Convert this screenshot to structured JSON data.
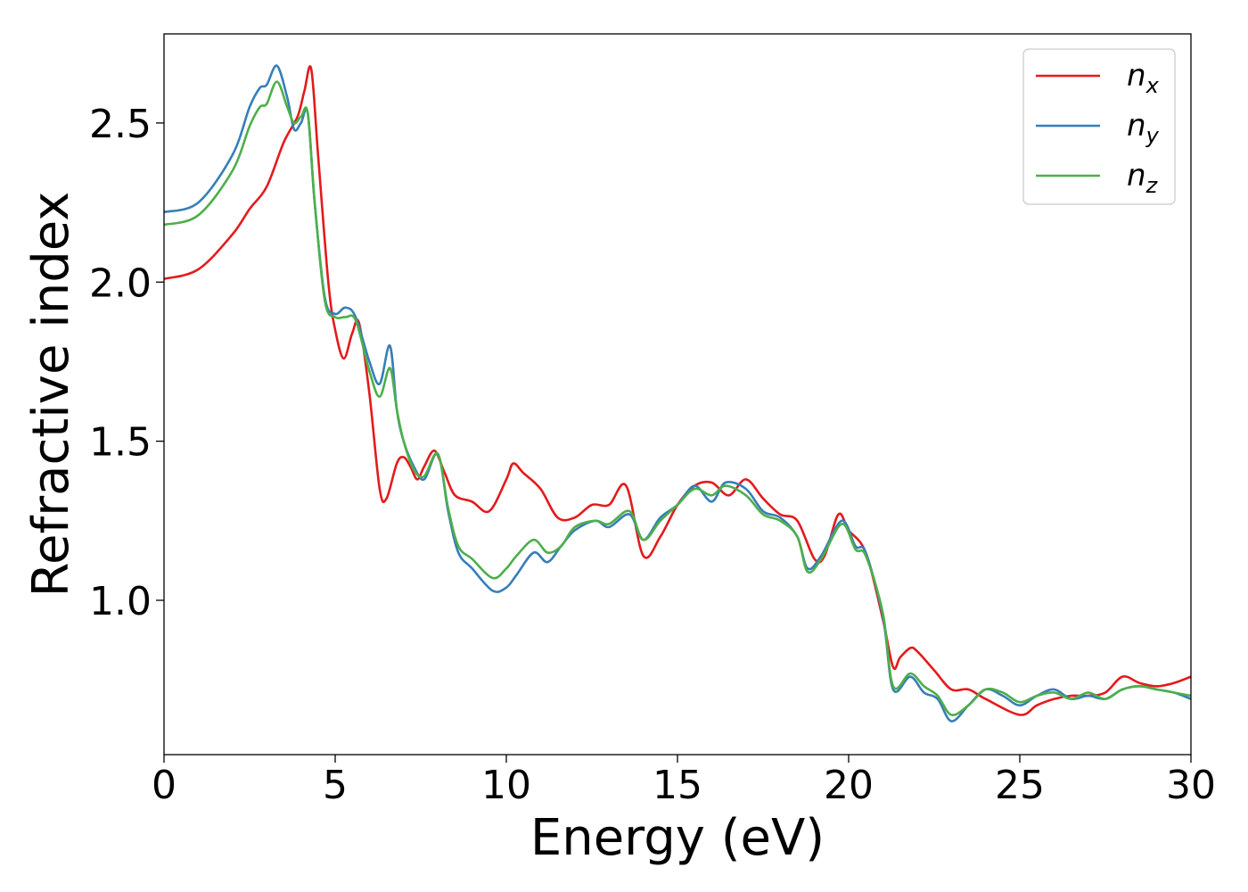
{
  "chart_data": {
    "type": "line",
    "xlabel": "Energy (eV)",
    "ylabel": "Refractive index",
    "xlim": [
      0,
      30
    ],
    "ylim": [
      0.515,
      2.78
    ],
    "xticks": [
      0,
      5,
      10,
      15,
      20,
      25,
      30
    ],
    "xtick_labels": [
      "0",
      "5",
      "10",
      "15",
      "20",
      "25",
      "30"
    ],
    "yticks": [
      1.0,
      1.5,
      2.0,
      2.5
    ],
    "ytick_labels": [
      "1.0",
      "1.5",
      "2.0",
      "2.5"
    ],
    "grid": false,
    "legend_position": "top-right",
    "series": [
      {
        "name": "nx",
        "label_main": "n",
        "label_sub": "x",
        "color": "#e41a1c",
        "x": [
          0,
          1,
          2,
          2.5,
          3,
          3.5,
          3.9,
          4.1,
          4.3,
          4.5,
          4.8,
          5,
          5.25,
          5.5,
          5.7,
          6,
          6.3,
          6.5,
          6.8,
          7,
          7.2,
          7.4,
          7.6,
          7.9,
          8.2,
          8.5,
          9,
          9.5,
          10,
          10.2,
          10.5,
          11,
          11.5,
          12,
          12.5,
          13,
          13.5,
          14,
          14.5,
          15,
          15.5,
          16,
          16.5,
          17,
          17.5,
          18,
          18.5,
          19,
          19.3,
          19.7,
          20,
          20.5,
          21,
          21.3,
          21.5,
          21.8,
          22,
          22.5,
          23,
          23.5,
          24,
          25,
          25.5,
          26,
          26.5,
          27,
          27.5,
          28,
          28.5,
          29,
          29.5,
          30
        ],
        "y": [
          2.01,
          2.04,
          2.15,
          2.23,
          2.3,
          2.44,
          2.52,
          2.6,
          2.67,
          2.4,
          2.0,
          1.85,
          1.76,
          1.84,
          1.87,
          1.65,
          1.35,
          1.32,
          1.43,
          1.45,
          1.42,
          1.38,
          1.42,
          1.47,
          1.4,
          1.33,
          1.31,
          1.28,
          1.38,
          1.43,
          1.4,
          1.35,
          1.26,
          1.26,
          1.3,
          1.3,
          1.36,
          1.14,
          1.2,
          1.3,
          1.36,
          1.37,
          1.33,
          1.38,
          1.32,
          1.27,
          1.25,
          1.13,
          1.14,
          1.27,
          1.22,
          1.15,
          0.94,
          0.79,
          0.82,
          0.85,
          0.84,
          0.78,
          0.72,
          0.72,
          0.69,
          0.64,
          0.67,
          0.69,
          0.7,
          0.7,
          0.71,
          0.76,
          0.74,
          0.73,
          0.74,
          0.76
        ]
      },
      {
        "name": "ny",
        "label_main": "n",
        "label_sub": "y",
        "color": "#377eb8",
        "x": [
          0,
          1,
          2,
          2.5,
          2.8,
          3,
          3.3,
          3.6,
          3.8,
          4,
          4.2,
          4.4,
          4.7,
          5,
          5.3,
          5.6,
          6,
          6.3,
          6.6,
          6.8,
          7,
          7.3,
          7.6,
          8,
          8.3,
          8.6,
          9,
          9.6,
          10,
          10.3,
          10.8,
          11.2,
          11.6,
          12,
          12.6,
          13,
          13.6,
          14,
          14.5,
          15,
          15.5,
          16,
          16.4,
          17,
          17.5,
          18,
          18.5,
          18.8,
          19.2,
          19.8,
          20.2,
          20.5,
          21,
          21.3,
          21.8,
          22.2,
          22.6,
          23,
          23.5,
          24,
          24.5,
          25,
          25.5,
          26,
          26.5,
          27,
          27.5,
          28,
          28.5,
          29,
          29.5,
          30
        ],
        "y": [
          2.22,
          2.25,
          2.4,
          2.55,
          2.61,
          2.62,
          2.68,
          2.58,
          2.48,
          2.5,
          2.53,
          2.25,
          1.95,
          1.9,
          1.92,
          1.89,
          1.75,
          1.68,
          1.8,
          1.6,
          1.5,
          1.42,
          1.38,
          1.46,
          1.28,
          1.15,
          1.1,
          1.03,
          1.04,
          1.08,
          1.15,
          1.12,
          1.17,
          1.22,
          1.25,
          1.23,
          1.27,
          1.19,
          1.26,
          1.3,
          1.36,
          1.31,
          1.37,
          1.35,
          1.28,
          1.26,
          1.2,
          1.1,
          1.14,
          1.25,
          1.17,
          1.15,
          0.95,
          0.72,
          0.76,
          0.71,
          0.69,
          0.62,
          0.67,
          0.72,
          0.7,
          0.67,
          0.7,
          0.72,
          0.69,
          0.7,
          0.69,
          0.72,
          0.73,
          0.72,
          0.71,
          0.69
        ]
      },
      {
        "name": "nz",
        "label_main": "n",
        "label_sub": "z",
        "color": "#4daf4a",
        "x": [
          0,
          1,
          2,
          2.5,
          2.8,
          3,
          3.3,
          3.6,
          3.8,
          4,
          4.2,
          4.4,
          4.7,
          5,
          5.3,
          5.6,
          6,
          6.3,
          6.6,
          6.8,
          7,
          7.3,
          7.6,
          8,
          8.3,
          8.6,
          9,
          9.6,
          10,
          10.3,
          10.8,
          11.2,
          11.6,
          12,
          12.6,
          13,
          13.6,
          14,
          14.5,
          15,
          15.5,
          16,
          16.4,
          17,
          17.5,
          18,
          18.5,
          18.8,
          19.2,
          19.8,
          20.2,
          20.5,
          21,
          21.3,
          21.8,
          22.2,
          22.6,
          23,
          23.5,
          24,
          24.5,
          25,
          25.5,
          26,
          26.5,
          27,
          27.5,
          28,
          28.5,
          29,
          29.5,
          30
        ],
        "y": [
          2.18,
          2.21,
          2.35,
          2.49,
          2.55,
          2.56,
          2.63,
          2.55,
          2.5,
          2.52,
          2.53,
          2.25,
          1.94,
          1.89,
          1.89,
          1.88,
          1.72,
          1.64,
          1.73,
          1.6,
          1.5,
          1.41,
          1.39,
          1.46,
          1.29,
          1.17,
          1.13,
          1.07,
          1.1,
          1.14,
          1.19,
          1.15,
          1.17,
          1.23,
          1.25,
          1.24,
          1.28,
          1.19,
          1.25,
          1.3,
          1.35,
          1.33,
          1.36,
          1.33,
          1.27,
          1.25,
          1.2,
          1.09,
          1.13,
          1.24,
          1.16,
          1.14,
          0.96,
          0.73,
          0.77,
          0.73,
          0.7,
          0.64,
          0.67,
          0.72,
          0.71,
          0.68,
          0.7,
          0.71,
          0.69,
          0.71,
          0.69,
          0.72,
          0.73,
          0.72,
          0.71,
          0.7
        ]
      }
    ]
  }
}
